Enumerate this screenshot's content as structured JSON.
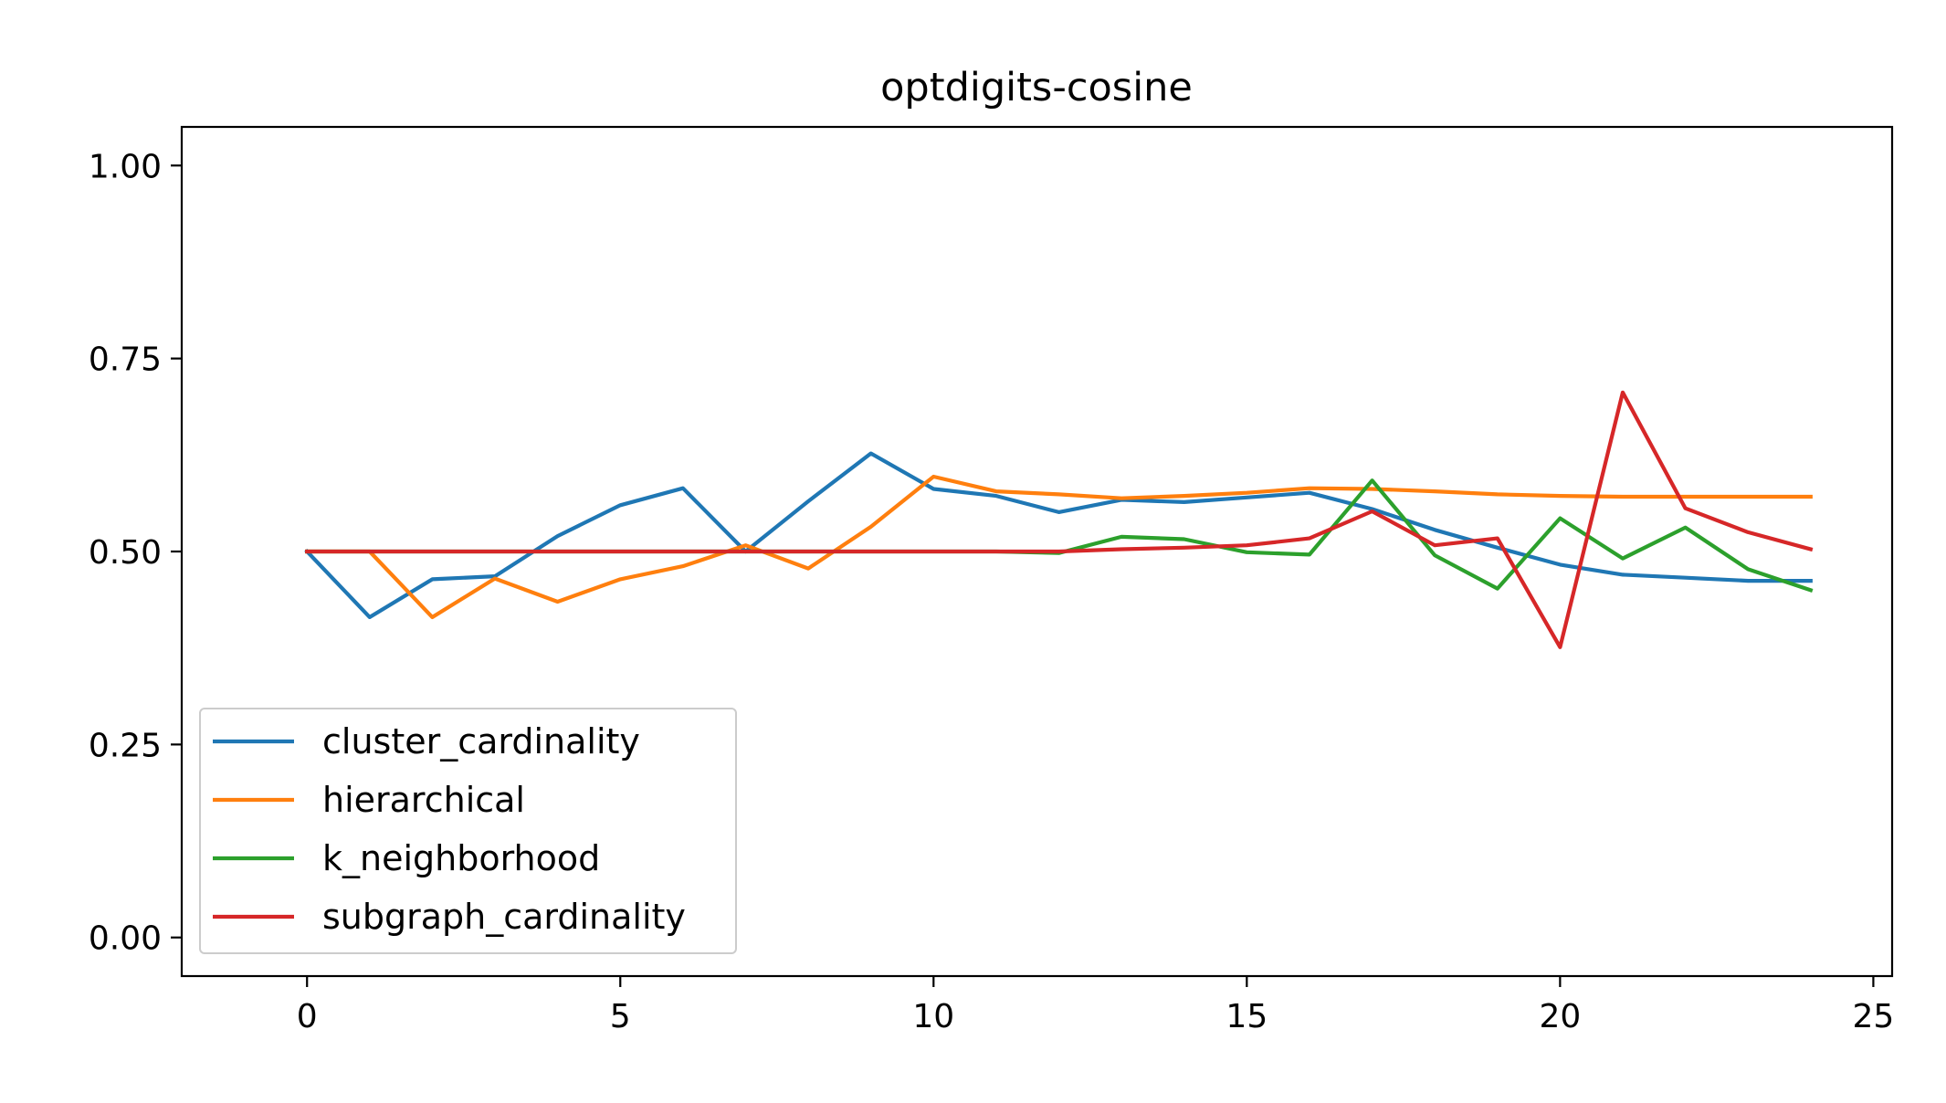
{
  "chart_data": {
    "type": "line",
    "title": "optdigits-cosine",
    "xlabel": "",
    "ylabel": "",
    "xlim": [
      -2,
      25.3
    ],
    "ylim": [
      -0.05,
      1.05
    ],
    "xticks": [
      0,
      5,
      10,
      15,
      20,
      25
    ],
    "xtick_labels": [
      "0",
      "5",
      "10",
      "15",
      "20",
      "25"
    ],
    "yticks": [
      0.0,
      0.25,
      0.5,
      0.75,
      1.0
    ],
    "ytick_labels": [
      "0.00",
      "0.25",
      "0.50",
      "0.75",
      "1.00"
    ],
    "grid": false,
    "legend_position": "lower-left",
    "x": [
      0,
      1,
      2,
      3,
      4,
      5,
      6,
      7,
      8,
      9,
      10,
      11,
      12,
      13,
      14,
      15,
      16,
      17,
      18,
      19,
      20,
      21,
      22,
      23,
      24
    ],
    "series": [
      {
        "name": "cluster_cardinality",
        "color": "#1f77b4",
        "values": [
          0.5,
          0.415,
          0.464,
          0.468,
          0.52,
          0.56,
          0.582,
          0.5,
          0.565,
          0.627,
          0.581,
          0.572,
          0.551,
          0.567,
          0.564,
          0.57,
          0.576,
          0.555,
          0.528,
          0.505,
          0.483,
          0.47,
          0.466,
          0.462,
          0.462
        ]
      },
      {
        "name": "hierarchical",
        "color": "#ff7f0e",
        "values": [
          0.5,
          0.5,
          0.415,
          0.465,
          0.435,
          0.464,
          0.481,
          0.508,
          0.478,
          0.532,
          0.597,
          0.578,
          0.574,
          0.569,
          0.572,
          0.576,
          0.582,
          0.581,
          0.578,
          0.574,
          0.572,
          0.571,
          0.571,
          0.571,
          0.571
        ]
      },
      {
        "name": "k_neighborhood",
        "color": "#2ca02c",
        "values": [
          0.5,
          0.5,
          0.5,
          0.5,
          0.5,
          0.5,
          0.5,
          0.5,
          0.5,
          0.5,
          0.5,
          0.5,
          0.498,
          0.519,
          0.516,
          0.499,
          0.496,
          0.592,
          0.495,
          0.452,
          0.543,
          0.491,
          0.531,
          0.477,
          0.45
        ]
      },
      {
        "name": "subgraph_cardinality",
        "color": "#d62728",
        "values": [
          0.5,
          0.5,
          0.5,
          0.5,
          0.5,
          0.5,
          0.5,
          0.5,
          0.5,
          0.5,
          0.5,
          0.5,
          0.5,
          0.503,
          0.505,
          0.508,
          0.517,
          0.552,
          0.508,
          0.517,
          0.376,
          0.706,
          0.556,
          0.525,
          0.503
        ]
      }
    ]
  }
}
